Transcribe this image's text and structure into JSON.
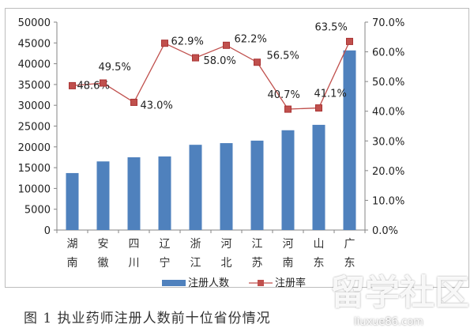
{
  "chart_data": {
    "type": "bar",
    "title": "图 1 执业药师注册人数前十位省份情况",
    "categories": [
      [
        "湖",
        "南"
      ],
      [
        "安",
        "徽"
      ],
      [
        "四",
        "川"
      ],
      [
        "辽",
        "宁"
      ],
      [
        "浙",
        "江"
      ],
      [
        "河",
        "北"
      ],
      [
        "江",
        "苏"
      ],
      [
        "河",
        "南"
      ],
      [
        "山",
        "东"
      ],
      [
        "广",
        "东"
      ]
    ],
    "series": [
      {
        "name": "注册人数",
        "type": "bar",
        "axis": "left",
        "color": "#4f81bd",
        "values": [
          13700,
          16500,
          17500,
          17700,
          20500,
          20900,
          21500,
          24000,
          25300,
          43200
        ]
      },
      {
        "name": "注册率",
        "type": "line",
        "axis": "right",
        "color": "#c0504d",
        "values": [
          48.6,
          49.5,
          43.0,
          62.9,
          58.0,
          62.2,
          56.5,
          40.7,
          41.1,
          63.5
        ],
        "labels": [
          "48.6%",
          "49.5%",
          "43.0%",
          "62.9%",
          "58.0%",
          "62.2%",
          "56.5%",
          "40.7%",
          "41.1%",
          "63.5%"
        ]
      }
    ],
    "yleft": {
      "lim": [
        0,
        50000
      ],
      "ticks": [
        "0",
        "5000",
        "10000",
        "15000",
        "20000",
        "25000",
        "30000",
        "35000",
        "40000",
        "45000",
        "50000"
      ]
    },
    "yright": {
      "lim": [
        0,
        70
      ],
      "ticks": [
        "0.0%",
        "10.0%",
        "20.0%",
        "30.0%",
        "40.0%",
        "50.0%",
        "60.0%",
        "70.0%"
      ]
    },
    "legend": {
      "placement": "bottom",
      "items": [
        "注册人数",
        "注册率"
      ]
    },
    "grid": false
  },
  "watermark": {
    "text": "留学社区",
    "url": "liuxue86.com"
  }
}
